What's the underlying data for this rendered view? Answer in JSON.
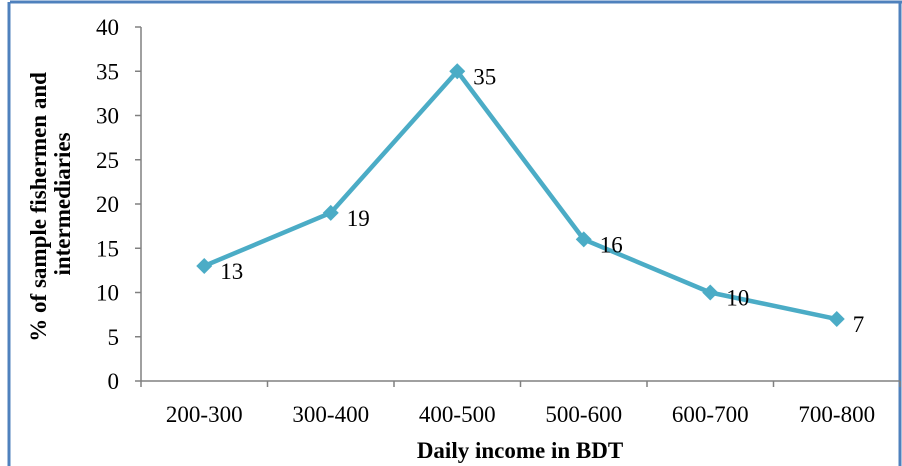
{
  "chart_data": {
    "type": "line",
    "categories": [
      "200-300",
      "300-400",
      "400-500",
      "500-600",
      "600-700",
      "700-800"
    ],
    "series": [
      {
        "values": [
          13,
          19,
          35,
          16,
          10,
          7
        ]
      }
    ],
    "data_labels": [
      "13",
      "19",
      "35",
      "16",
      "10",
      "7"
    ],
    "xlabel": "Daily income in BDT",
    "ylabel_lines": [
      "% of sample fishermen and",
      "intermediaries"
    ],
    "ylim": [
      0,
      40
    ],
    "yticks": [
      "0",
      "5",
      "10",
      "15",
      "20",
      "25",
      "30",
      "35",
      "40"
    ],
    "grid": false,
    "line_color": "#4bacc6",
    "frame_color": "#4f81bd"
  }
}
